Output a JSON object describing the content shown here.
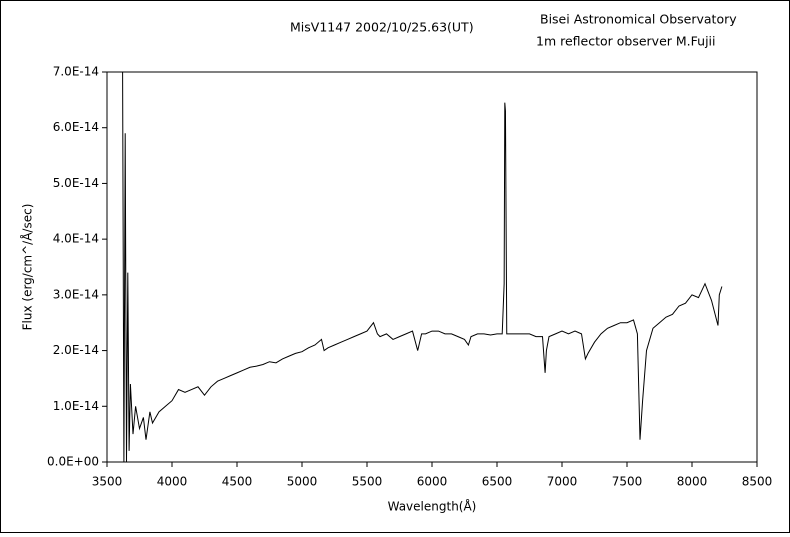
{
  "chart_data": {
    "type": "line",
    "annotations": [
      "MisV1147  2002/10/25.63(UT)",
      "Bisei Astronomical Observatory",
      "1m reflector      observer M.Fujii"
    ],
    "x_label": "Wavelength(Å)",
    "y_label": "Flux (erg/cm^/Å/sec)",
    "color": "#000000",
    "xlim": [
      3500,
      8500
    ],
    "xticks": [
      3500,
      4000,
      4500,
      5000,
      5500,
      6000,
      6500,
      7000,
      7500,
      8000,
      8500
    ],
    "ylim": [
      0,
      7e-14
    ],
    "yticks": [
      {
        "value": 0,
        "label": "0.0E+00"
      },
      {
        "value": 1e-14,
        "label": "1.0E-14"
      },
      {
        "value": 2e-14,
        "label": "2.0E-14"
      },
      {
        "value": 3e-14,
        "label": "3.0E-14"
      },
      {
        "value": 4e-14,
        "label": "4.0E-14"
      },
      {
        "value": 5e-14,
        "label": "5.0E-14"
      },
      {
        "value": 6e-14,
        "label": "6.0E-14"
      },
      {
        "value": 7e-14,
        "label": "7.0E-14"
      }
    ],
    "x": [
      3620,
      3630,
      3640,
      3650,
      3660,
      3670,
      3680,
      3700,
      3720,
      3750,
      3780,
      3800,
      3830,
      3850,
      3900,
      3950,
      4000,
      4050,
      4100,
      4150,
      4200,
      4250,
      4300,
      4350,
      4400,
      4450,
      4500,
      4550,
      4600,
      4650,
      4700,
      4750,
      4800,
      4850,
      4900,
      4950,
      5000,
      5050,
      5100,
      5150,
      5170,
      5200,
      5250,
      5300,
      5350,
      5400,
      5450,
      5500,
      5550,
      5580,
      5600,
      5650,
      5700,
      5750,
      5800,
      5850,
      5890,
      5920,
      5950,
      6000,
      6050,
      6100,
      6150,
      6200,
      6250,
      6280,
      6300,
      6350,
      6400,
      6450,
      6500,
      6540,
      6555,
      6560,
      6565,
      6575,
      6600,
      6650,
      6700,
      6750,
      6800,
      6850,
      6870,
      6880,
      6900,
      6950,
      7000,
      7050,
      7100,
      7150,
      7180,
      7200,
      7250,
      7300,
      7350,
      7400,
      7450,
      7500,
      7550,
      7580,
      7600,
      7620,
      7650,
      7700,
      7750,
      7800,
      7850,
      7900,
      7950,
      8000,
      8050,
      8100,
      8150,
      8200,
      8210,
      8230
    ],
    "values": [
      7e-14,
      0,
      5.9e-14,
      0,
      3.4e-14,
      2e-15,
      1.4e-14,
      5e-15,
      1e-14,
      6e-15,
      8e-15,
      4e-15,
      9e-15,
      7e-15,
      9e-15,
      1e-14,
      1.1e-14,
      1.3e-14,
      1.25e-14,
      1.3e-14,
      1.35e-14,
      1.2e-14,
      1.35e-14,
      1.45e-14,
      1.5e-14,
      1.55e-14,
      1.6e-14,
      1.65e-14,
      1.7e-14,
      1.72e-14,
      1.75e-14,
      1.8e-14,
      1.78e-14,
      1.85e-14,
      1.9e-14,
      1.95e-14,
      1.98e-14,
      2.05e-14,
      2.1e-14,
      2.2e-14,
      2e-14,
      2.05e-14,
      2.1e-14,
      2.15e-14,
      2.2e-14,
      2.25e-14,
      2.3e-14,
      2.35e-14,
      2.5e-14,
      2.3e-14,
      2.25e-14,
      2.3e-14,
      2.2e-14,
      2.25e-14,
      2.3e-14,
      2.35e-14,
      2e-14,
      2.3e-14,
      2.3e-14,
      2.35e-14,
      2.35e-14,
      2.3e-14,
      2.3e-14,
      2.25e-14,
      2.2e-14,
      2.1e-14,
      2.25e-14,
      2.3e-14,
      2.3e-14,
      2.28e-14,
      2.3e-14,
      2.3e-14,
      3.2e-14,
      6.45e-14,
      6.3e-14,
      2.3e-14,
      2.3e-14,
      2.3e-14,
      2.3e-14,
      2.3e-14,
      2.25e-14,
      2.25e-14,
      1.6e-14,
      2e-14,
      2.25e-14,
      2.3e-14,
      2.35e-14,
      2.3e-14,
      2.35e-14,
      2.3e-14,
      1.85e-14,
      1.95e-14,
      2.15e-14,
      2.3e-14,
      2.4e-14,
      2.45e-14,
      2.5e-14,
      2.5e-14,
      2.55e-14,
      2.3e-14,
      4e-15,
      1.1e-14,
      2e-14,
      2.4e-14,
      2.5e-14,
      2.6e-14,
      2.65e-14,
      2.8e-14,
      2.85e-14,
      3e-14,
      2.95e-14,
      3.2e-14,
      2.9e-14,
      2.45e-14,
      3e-14,
      3.15e-14
    ]
  }
}
